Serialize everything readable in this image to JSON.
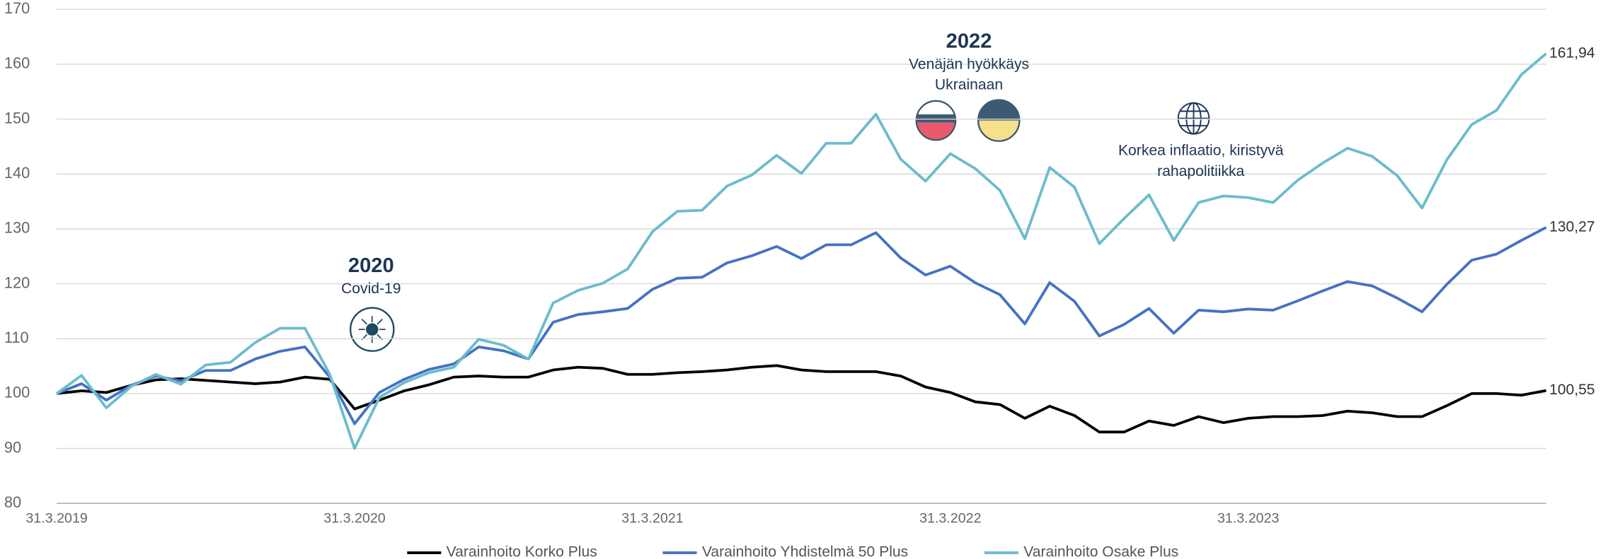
{
  "chart_data": {
    "type": "line",
    "categories": [
      "31.3.2019",
      null,
      null,
      null,
      null,
      null,
      null,
      null,
      null,
      null,
      null,
      null,
      "31.3.2020",
      null,
      null,
      null,
      null,
      null,
      null,
      null,
      null,
      null,
      null,
      null,
      "31.3.2021",
      null,
      null,
      null,
      null,
      null,
      null,
      null,
      null,
      null,
      null,
      null,
      "31.3.2022",
      null,
      null,
      null,
      null,
      null,
      null,
      null,
      null,
      null,
      null,
      null,
      "31.3.2023",
      null,
      null,
      null,
      null,
      null,
      null,
      null,
      null,
      null,
      null,
      null,
      null
    ],
    "ylim": [
      80,
      170
    ],
    "yticks": [
      80,
      90,
      100,
      110,
      120,
      130,
      140,
      150,
      160,
      170
    ],
    "grid": true,
    "legend": "bottom",
    "series": [
      {
        "name": "Varainhoito Korko Plus",
        "color": "#000000",
        "values": [
          100,
          100.5,
          100.2,
          101.5,
          102.5,
          102.7,
          102.4,
          102.1,
          101.8,
          102.1,
          103,
          102.6,
          97.2,
          98.8,
          100.5,
          101.6,
          103,
          103.2,
          103,
          103,
          104.3,
          104.8,
          104.6,
          103.5,
          103.5,
          103.8,
          104,
          104.3,
          104.8,
          105.1,
          104.3,
          104,
          104,
          104,
          103.2,
          101.2,
          100.2,
          98.5,
          98,
          95.5,
          97.7,
          96,
          93,
          93,
          95,
          94.2,
          95.8,
          94.7,
          95.5,
          95.8,
          95.8,
          96,
          96.8,
          96.5,
          95.8,
          95.8,
          97.8,
          100,
          100,
          99.7,
          100.55
        ],
        "value_labels": [
          null,
          null,
          null,
          null,
          null,
          null,
          null,
          null,
          null,
          null,
          null,
          null,
          null,
          null,
          null,
          null,
          null,
          null,
          null,
          null,
          null,
          null,
          null,
          null,
          null,
          null,
          null,
          null,
          null,
          null,
          null,
          null,
          null,
          null,
          null,
          null,
          null,
          null,
          null,
          null,
          null,
          null,
          null,
          null,
          null,
          null,
          null,
          null,
          null,
          null,
          null,
          null,
          null,
          null,
          null,
          null,
          null,
          null,
          null,
          null,
          "100,55"
        ]
      },
      {
        "name": "Varainhoito Yhdistelmä 50 Plus",
        "color": "#4472c4",
        "values": [
          100,
          101.8,
          98.8,
          101.5,
          103.2,
          102.3,
          104.2,
          104.2,
          106.3,
          107.7,
          108.5,
          103,
          94.5,
          100.2,
          102.6,
          104.4,
          105.4,
          108.5,
          107.8,
          106.3,
          113,
          114.4,
          114.9,
          115.5,
          119,
          121,
          121.2,
          123.8,
          125.1,
          126.8,
          124.6,
          127.1,
          127.1,
          129.3,
          124.7,
          121.6,
          123.2,
          120.2,
          118,
          112.7,
          120.2,
          116.8,
          110.5,
          112.6,
          115.5,
          111,
          115.2,
          114.9,
          115.4,
          115.2,
          116.9,
          118.7,
          120.4,
          119.6,
          117.4,
          114.9,
          119.9,
          124.3,
          125.4,
          127.9,
          130.27
        ],
        "value_labels": [
          null,
          null,
          null,
          null,
          null,
          null,
          null,
          null,
          null,
          null,
          null,
          null,
          null,
          null,
          null,
          null,
          null,
          null,
          null,
          null,
          null,
          null,
          null,
          null,
          null,
          null,
          null,
          null,
          null,
          null,
          null,
          null,
          null,
          null,
          null,
          null,
          null,
          null,
          null,
          null,
          null,
          null,
          null,
          null,
          null,
          null,
          null,
          null,
          null,
          null,
          null,
          null,
          null,
          null,
          null,
          null,
          null,
          null,
          null,
          null,
          "130,27"
        ]
      },
      {
        "name": "Varainhoito Osake Plus",
        "color": "#6bbccc",
        "values": [
          100,
          103.3,
          97.4,
          101.3,
          103.5,
          101.7,
          105.2,
          105.7,
          109.3,
          111.9,
          111.9,
          103.5,
          90,
          99.3,
          102,
          103.8,
          104.8,
          109.9,
          108.8,
          106.3,
          116.5,
          118.8,
          120.1,
          122.7,
          129.5,
          133.2,
          133.4,
          137.8,
          139.8,
          143.4,
          140.1,
          145.6,
          145.6,
          150.9,
          142.7,
          138.7,
          143.7,
          141,
          137,
          128.2,
          141.2,
          137.6,
          127.3,
          131.9,
          136.2,
          127.9,
          134.8,
          136,
          135.7,
          134.8,
          138.9,
          142,
          144.7,
          143.2,
          139.7,
          133.8,
          142.6,
          149,
          151.6,
          158.1,
          161.94
        ],
        "value_labels": [
          null,
          null,
          null,
          null,
          null,
          null,
          null,
          null,
          null,
          null,
          null,
          null,
          null,
          null,
          null,
          null,
          null,
          null,
          null,
          null,
          null,
          null,
          null,
          null,
          null,
          null,
          null,
          null,
          null,
          null,
          null,
          null,
          null,
          null,
          null,
          null,
          null,
          null,
          null,
          null,
          null,
          null,
          null,
          null,
          null,
          null,
          null,
          null,
          null,
          null,
          null,
          null,
          null,
          null,
          null,
          null,
          null,
          null,
          null,
          null,
          "161,94"
        ]
      }
    ],
    "annotations": [
      {
        "title": "2020",
        "text": [
          "Covid-19"
        ]
      },
      {
        "title": "2022",
        "text": [
          "Venäjän hyökkäys",
          "Ukrainaan"
        ]
      },
      {
        "text": [
          "Korkea inflaatio, kiristyvä",
          "rahapolitiikka"
        ]
      }
    ]
  }
}
